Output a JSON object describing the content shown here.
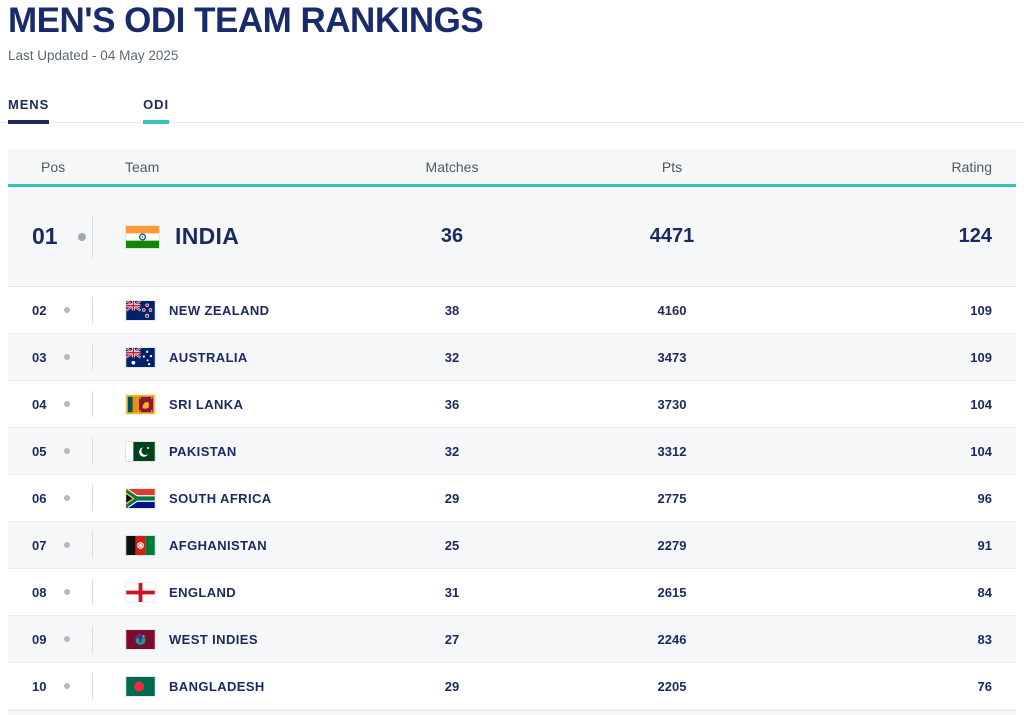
{
  "page": {
    "title": "MEN'S ODI TEAM RANKINGS",
    "last_updated": "Last Updated - 04 May 2025"
  },
  "tabs": [
    {
      "label": "MENS",
      "underline_color": "#1b2a5e",
      "active": true
    },
    {
      "label": "ODI",
      "underline_color": "#38c3b6",
      "active": true
    }
  ],
  "colors": {
    "brand_navy": "#1a2b6b",
    "accent_teal": "#38c3b6",
    "row_shade": "#f6f7f8",
    "text_navy": "#1b2a5e",
    "header_gray": "#4e5a68"
  },
  "table": {
    "columns": [
      "Pos",
      "Team",
      "Matches",
      "Pts",
      "Rating"
    ],
    "rows": [
      {
        "pos": "01",
        "team": "INDIA",
        "flag": "india",
        "matches": "36",
        "pts": "4471",
        "rating": "124",
        "featured": true
      },
      {
        "pos": "02",
        "team": "NEW ZEALAND",
        "flag": "new-zealand",
        "matches": "38",
        "pts": "4160",
        "rating": "109"
      },
      {
        "pos": "03",
        "team": "AUSTRALIA",
        "flag": "australia",
        "matches": "32",
        "pts": "3473",
        "rating": "109"
      },
      {
        "pos": "04",
        "team": "SRI LANKA",
        "flag": "sri-lanka",
        "matches": "36",
        "pts": "3730",
        "rating": "104"
      },
      {
        "pos": "05",
        "team": "PAKISTAN",
        "flag": "pakistan",
        "matches": "32",
        "pts": "3312",
        "rating": "104"
      },
      {
        "pos": "06",
        "team": "SOUTH AFRICA",
        "flag": "south-africa",
        "matches": "29",
        "pts": "2775",
        "rating": "96"
      },
      {
        "pos": "07",
        "team": "AFGHANISTAN",
        "flag": "afghanistan",
        "matches": "25",
        "pts": "2279",
        "rating": "91"
      },
      {
        "pos": "08",
        "team": "ENGLAND",
        "flag": "england",
        "matches": "31",
        "pts": "2615",
        "rating": "84"
      },
      {
        "pos": "09",
        "team": "WEST INDIES",
        "flag": "west-indies",
        "matches": "27",
        "pts": "2246",
        "rating": "83"
      },
      {
        "pos": "10",
        "team": "BANGLADESH",
        "flag": "bangladesh",
        "matches": "29",
        "pts": "2205",
        "rating": "76"
      }
    ]
  }
}
